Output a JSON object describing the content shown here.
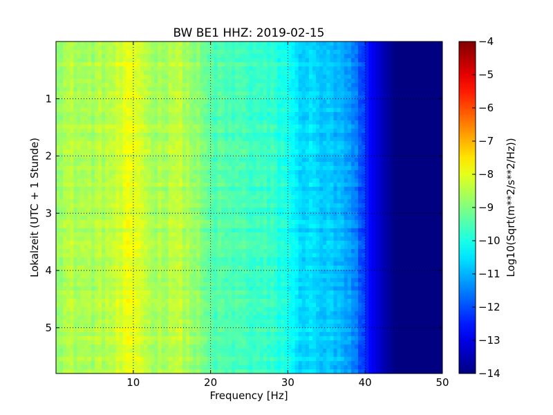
{
  "chart_data": {
    "type": "heatmap",
    "title": "BW BE1 HHZ: 2019-02-15",
    "xlabel": "Frequency [Hz]",
    "ylabel": "Lokalzeit (UTC + 1 Stunde)",
    "xlim": [
      0,
      50
    ],
    "ylim": [
      0,
      5.8
    ],
    "y_inverted": true,
    "x_ticks": [
      10,
      20,
      30,
      40,
      50
    ],
    "y_ticks": [
      1,
      2,
      3,
      4,
      5
    ],
    "grid": true,
    "colormap": "jet",
    "colorbar": {
      "label": "Log10(Sqrt(m**2/s**2/Hz))",
      "range": [
        -14,
        -4
      ],
      "ticks": [
        -4,
        -5,
        -6,
        -7,
        -8,
        -9,
        -10,
        -11,
        -12,
        -13,
        -14
      ]
    },
    "spectral_profile": {
      "frequency_hz": [
        0,
        2,
        4,
        6,
        8,
        9,
        10,
        11,
        12,
        14,
        15,
        16,
        18,
        20,
        22,
        25,
        28,
        30,
        31,
        33,
        35,
        37,
        38,
        39,
        40,
        41,
        42,
        43,
        44,
        50
      ],
      "log_psd": [
        -8.6,
        -8.5,
        -8.6,
        -8.5,
        -8.3,
        -8.1,
        -8.0,
        -8.1,
        -8.5,
        -8.6,
        -8.3,
        -8.4,
        -8.8,
        -9.4,
        -9.5,
        -9.6,
        -9.8,
        -10.0,
        -10.5,
        -10.6,
        -10.8,
        -11.0,
        -11.3,
        -11.7,
        -12.3,
        -12.9,
        -13.3,
        -13.7,
        -14.0,
        -14.0
      ]
    }
  }
}
